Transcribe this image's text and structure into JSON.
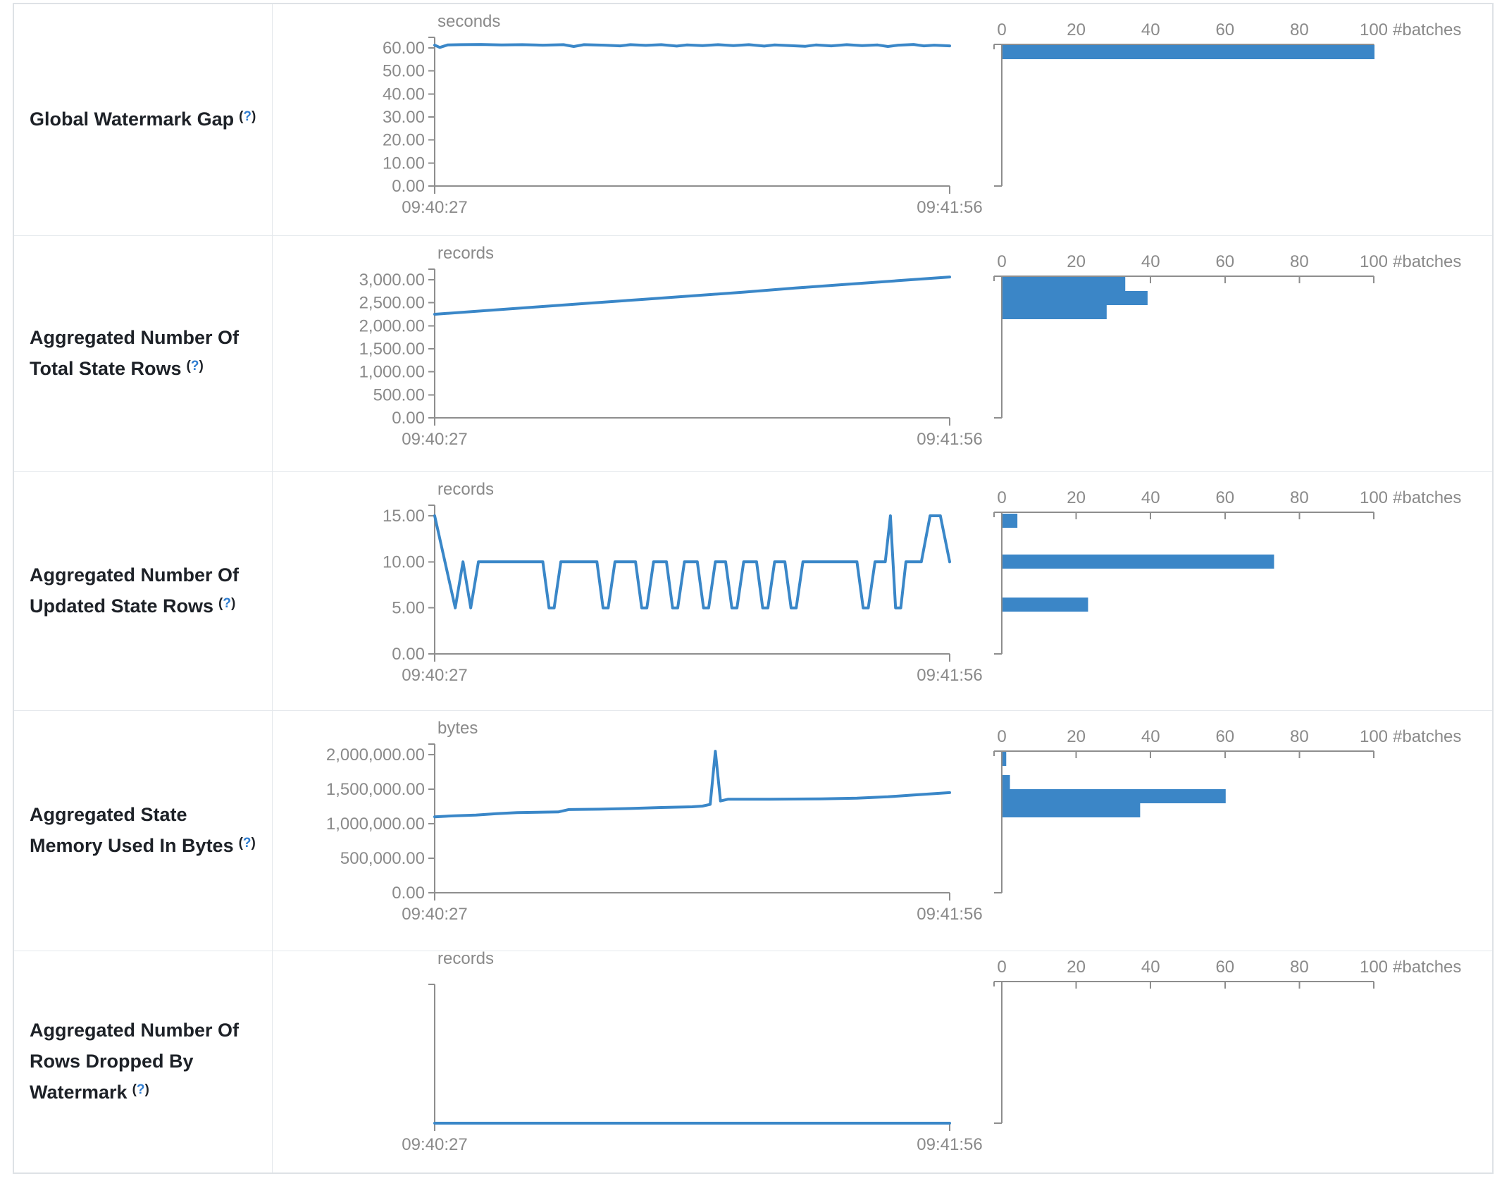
{
  "help": {
    "open": "(",
    "q": "?",
    "close": ")"
  },
  "time_axis": {
    "start": "09:40:27",
    "end": "09:41:56"
  },
  "batches_axis": {
    "label": "#batches",
    "ticks": [
      {
        "v": 0,
        "label": "0"
      },
      {
        "v": 20,
        "label": "20"
      },
      {
        "v": 40,
        "label": "40"
      },
      {
        "v": 60,
        "label": "60"
      },
      {
        "v": 80,
        "label": "80"
      },
      {
        "v": 100,
        "label": "100"
      }
    ],
    "max": 100
  },
  "colors": {
    "accent_blue": "#3b86c7",
    "line_blue": "#3a87c8",
    "axis_gray": "#8e8e8e",
    "text_gray": "#8a8a8a",
    "title_text": "#1d2127",
    "link_blue": "#2e7cd0",
    "border": "#e4e8ec"
  },
  "chart_data": [
    {
      "type": "line",
      "title": "Global Watermark Gap",
      "unit": "seconds",
      "y_max": 60,
      "y_ticks": [
        {
          "v": 0,
          "label": "0.00"
        },
        {
          "v": 10,
          "label": "10.00"
        },
        {
          "v": 20,
          "label": "20.00"
        },
        {
          "v": 30,
          "label": "30.00"
        },
        {
          "v": 40,
          "label": "40.00"
        },
        {
          "v": 50,
          "label": "50.00"
        },
        {
          "v": 60,
          "label": "60.00"
        }
      ],
      "timeline": {
        "x_start": "09:40:27",
        "x_end": "09:41:56",
        "points": [
          [
            0,
            61.2
          ],
          [
            0.01,
            60.2
          ],
          [
            0.025,
            61.3
          ],
          [
            0.05,
            61.4
          ],
          [
            0.09,
            61.5
          ],
          [
            0.13,
            61.3
          ],
          [
            0.17,
            61.4
          ],
          [
            0.21,
            61.2
          ],
          [
            0.25,
            61.4
          ],
          [
            0.27,
            60.6
          ],
          [
            0.29,
            61.4
          ],
          [
            0.33,
            61.2
          ],
          [
            0.36,
            60.9
          ],
          [
            0.38,
            61.4
          ],
          [
            0.41,
            61.1
          ],
          [
            0.44,
            61.4
          ],
          [
            0.47,
            60.8
          ],
          [
            0.49,
            61.3
          ],
          [
            0.52,
            61.0
          ],
          [
            0.55,
            61.4
          ],
          [
            0.58,
            61.0
          ],
          [
            0.61,
            61.4
          ],
          [
            0.64,
            60.8
          ],
          [
            0.66,
            61.3
          ],
          [
            0.69,
            61.0
          ],
          [
            0.72,
            60.7
          ],
          [
            0.74,
            61.3
          ],
          [
            0.77,
            60.9
          ],
          [
            0.8,
            61.4
          ],
          [
            0.83,
            61.0
          ],
          [
            0.86,
            61.3
          ],
          [
            0.88,
            60.6
          ],
          [
            0.9,
            61.2
          ],
          [
            0.93,
            61.5
          ],
          [
            0.95,
            60.9
          ],
          [
            0.97,
            61.2
          ],
          [
            1,
            60.9
          ]
        ]
      },
      "histogram": {
        "unit": "#batches",
        "bars": [
          {
            "batches": 100,
            "y": 58
          }
        ]
      }
    },
    {
      "type": "line",
      "title": "Aggregated Number Of Total State Rows",
      "unit": "records",
      "y_max": 3000,
      "y_ticks": [
        {
          "v": 0,
          "label": "0.00"
        },
        {
          "v": 500,
          "label": "500.00"
        },
        {
          "v": 1000,
          "label": "1,000.00"
        },
        {
          "v": 1500,
          "label": "1,500.00"
        },
        {
          "v": 2000,
          "label": "2,000.00"
        },
        {
          "v": 2500,
          "label": "2,500.00"
        },
        {
          "v": 3000,
          "label": "3,000.00"
        }
      ],
      "timeline": {
        "x_start": "09:40:27",
        "x_end": "09:41:56",
        "points": [
          [
            0,
            2250
          ],
          [
            0.1,
            2330
          ],
          [
            0.2,
            2410
          ],
          [
            0.3,
            2490
          ],
          [
            0.4,
            2570
          ],
          [
            0.5,
            2650
          ],
          [
            0.6,
            2730
          ],
          [
            0.7,
            2820
          ],
          [
            0.8,
            2900
          ],
          [
            0.9,
            2980
          ],
          [
            1,
            3060
          ]
        ]
      },
      "histogram": {
        "unit": "#batches",
        "bars": [
          {
            "batches": 33,
            "y": 58
          },
          {
            "batches": 39,
            "y": 78
          },
          {
            "batches": 28,
            "y": 98
          }
        ]
      }
    },
    {
      "type": "line",
      "title": "Aggregated Number Of Updated State Rows",
      "unit": "records",
      "y_max": 15,
      "y_ticks": [
        {
          "v": 0,
          "label": "0.00"
        },
        {
          "v": 5,
          "label": "5.00"
        },
        {
          "v": 10,
          "label": "10.00"
        },
        {
          "v": 15,
          "label": "15.00"
        }
      ],
      "timeline": {
        "x_start": "09:40:27",
        "x_end": "09:41:56",
        "points": [
          [
            0,
            15
          ],
          [
            0.04,
            5
          ],
          [
            0.055,
            10
          ],
          [
            0.07,
            5
          ],
          [
            0.085,
            10
          ],
          [
            0.21,
            10
          ],
          [
            0.222,
            5
          ],
          [
            0.232,
            5
          ],
          [
            0.245,
            10
          ],
          [
            0.315,
            10
          ],
          [
            0.327,
            5
          ],
          [
            0.337,
            5
          ],
          [
            0.35,
            10
          ],
          [
            0.39,
            10
          ],
          [
            0.402,
            5
          ],
          [
            0.412,
            5
          ],
          [
            0.425,
            10
          ],
          [
            0.45,
            10
          ],
          [
            0.462,
            5
          ],
          [
            0.472,
            5
          ],
          [
            0.485,
            10
          ],
          [
            0.51,
            10
          ],
          [
            0.522,
            5
          ],
          [
            0.532,
            5
          ],
          [
            0.545,
            10
          ],
          [
            0.565,
            10
          ],
          [
            0.577,
            5
          ],
          [
            0.587,
            5
          ],
          [
            0.6,
            10
          ],
          [
            0.625,
            10
          ],
          [
            0.637,
            5
          ],
          [
            0.647,
            5
          ],
          [
            0.66,
            10
          ],
          [
            0.68,
            10
          ],
          [
            0.692,
            5
          ],
          [
            0.702,
            5
          ],
          [
            0.715,
            10
          ],
          [
            0.82,
            10
          ],
          [
            0.832,
            5
          ],
          [
            0.842,
            5
          ],
          [
            0.855,
            10
          ],
          [
            0.875,
            10
          ],
          [
            0.885,
            15
          ],
          [
            0.895,
            5
          ],
          [
            0.905,
            5
          ],
          [
            0.915,
            10
          ],
          [
            0.945,
            10
          ],
          [
            0.962,
            15
          ],
          [
            0.982,
            15
          ],
          [
            1,
            10
          ]
        ]
      },
      "histogram": {
        "unit": "#batches",
        "bars": [
          {
            "batches": 4,
            "y": 59
          },
          {
            "batches": 73,
            "y": 117
          },
          {
            "batches": 23,
            "y": 178
          }
        ]
      }
    },
    {
      "type": "line",
      "title": "Aggregated State Memory Used In Bytes",
      "unit": "bytes",
      "y_max": 2000000,
      "y_ticks": [
        {
          "v": 0,
          "label": "0.00"
        },
        {
          "v": 500000,
          "label": "500,000.00"
        },
        {
          "v": 1000000,
          "label": "1,000,000.00"
        },
        {
          "v": 1500000,
          "label": "1,500,000.00"
        },
        {
          "v": 2000000,
          "label": "2,000,000.00"
        }
      ],
      "timeline": {
        "x_start": "09:40:27",
        "x_end": "09:41:56",
        "points": [
          [
            0,
            1100000
          ],
          [
            0.04,
            1115000
          ],
          [
            0.08,
            1125000
          ],
          [
            0.12,
            1145000
          ],
          [
            0.16,
            1160000
          ],
          [
            0.2,
            1165000
          ],
          [
            0.24,
            1170000
          ],
          [
            0.26,
            1205000
          ],
          [
            0.32,
            1210000
          ],
          [
            0.38,
            1220000
          ],
          [
            0.44,
            1235000
          ],
          [
            0.5,
            1245000
          ],
          [
            0.52,
            1255000
          ],
          [
            0.535,
            1280000
          ],
          [
            0.545,
            2050000
          ],
          [
            0.555,
            1330000
          ],
          [
            0.57,
            1355000
          ],
          [
            0.65,
            1355000
          ],
          [
            0.75,
            1360000
          ],
          [
            0.82,
            1370000
          ],
          [
            0.88,
            1390000
          ],
          [
            0.93,
            1415000
          ],
          [
            1,
            1450000
          ]
        ]
      },
      "histogram": {
        "unit": "#batches",
        "bars": [
          {
            "batches": 1,
            "y": 58
          },
          {
            "batches": 2,
            "y": 91
          },
          {
            "batches": 60,
            "y": 111
          },
          {
            "batches": 37,
            "y": 131
          }
        ]
      }
    },
    {
      "type": "line",
      "title": "Aggregated Number Of Rows Dropped By Watermark",
      "unit": "records",
      "y_max": null,
      "y_ticks": [],
      "timeline": {
        "x_start": "09:40:27",
        "x_end": "09:41:56",
        "points": [
          [
            0,
            0
          ],
          [
            1,
            0
          ]
        ]
      },
      "histogram": {
        "unit": "#batches",
        "bars": []
      }
    }
  ]
}
